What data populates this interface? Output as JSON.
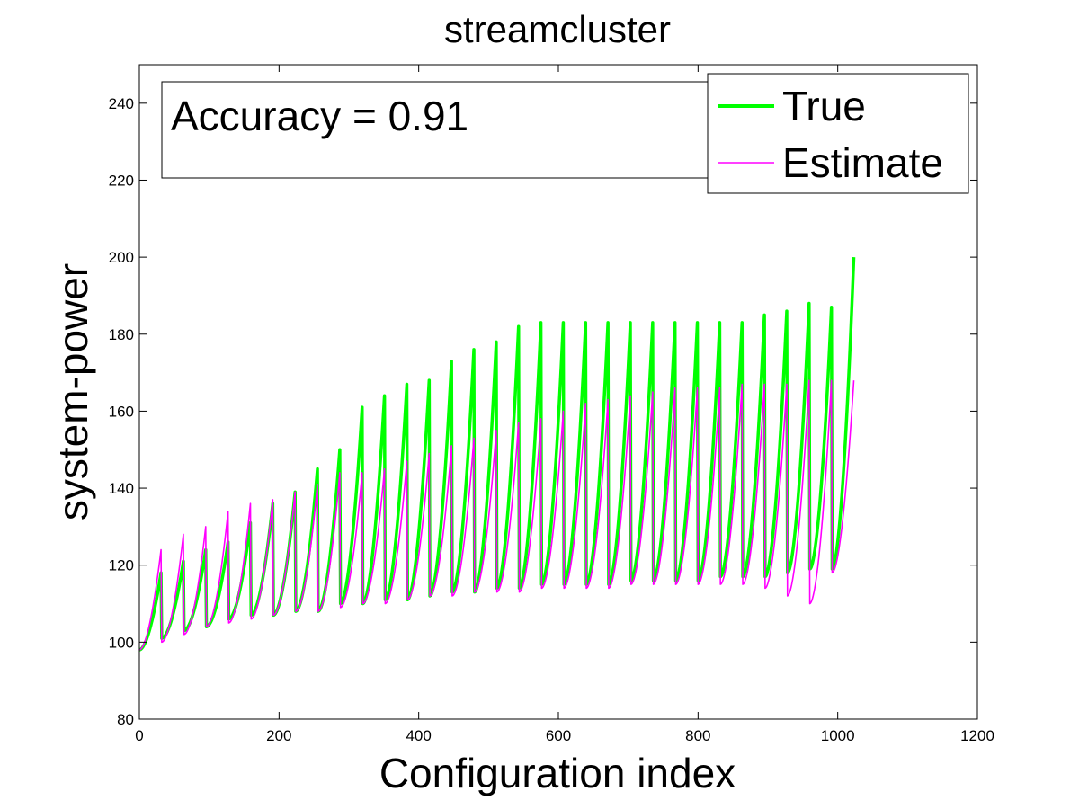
{
  "chart_data": {
    "type": "line",
    "title": "streamcluster",
    "xlabel": "Configuration index",
    "ylabel": "system-power",
    "xlim": [
      0,
      1200
    ],
    "ylim": [
      80,
      250
    ],
    "xticks": [
      "0",
      "200",
      "400",
      "600",
      "800",
      "1000",
      "1200"
    ],
    "yticks": [
      "80",
      "100",
      "120",
      "140",
      "160",
      "180",
      "200",
      "220",
      "240"
    ],
    "grid": false,
    "legend_position": "top-right",
    "annotation": "Accuracy = 0.91",
    "colors": {
      "true": "#00ff00",
      "estimate": "#ff00ff",
      "axes": "#000000",
      "overlap": "#808080"
    },
    "cycle_length": 32,
    "series": [
      {
        "name": "True",
        "color": "#00ff00",
        "description": "32 sawtooth cycles over indices 0-1023; each cycle rises from the cycle minimum to the cycle maximum",
        "cycle_min": [
          98,
          101,
          103,
          104,
          106,
          107,
          107,
          108,
          108,
          110,
          110,
          111,
          111,
          112,
          113,
          113,
          114,
          114,
          115,
          115,
          115,
          115,
          116,
          116,
          116,
          116,
          117,
          117,
          117,
          118,
          119,
          119
        ],
        "cycle_max": [
          118,
          121,
          124,
          126,
          131,
          136,
          139,
          145,
          150,
          161,
          164,
          167,
          168,
          173,
          176,
          178,
          182,
          183,
          183,
          183,
          183,
          183,
          183,
          183,
          183,
          183,
          183,
          185,
          186,
          188,
          187,
          200
        ]
      },
      {
        "name": "Estimate",
        "color": "#ff00ff",
        "description": "32 sawtooth cycles over indices 0-1023 tracking the True series with lower peaks",
        "cycle_min": [
          98,
          100,
          102,
          104,
          105,
          106,
          107,
          108,
          108,
          109,
          110,
          110,
          111,
          112,
          112,
          113,
          113,
          113,
          114,
          114,
          114,
          114,
          115,
          115,
          115,
          115,
          115,
          115,
          114,
          112,
          110,
          118
        ],
        "cycle_max": [
          124,
          128,
          130,
          134,
          136,
          137,
          139,
          141,
          144,
          144,
          145,
          147,
          149,
          151,
          153,
          155,
          157,
          158,
          160,
          162,
          163,
          164,
          165,
          166,
          166,
          166,
          167,
          167,
          167,
          168,
          168,
          168
        ]
      }
    ]
  }
}
